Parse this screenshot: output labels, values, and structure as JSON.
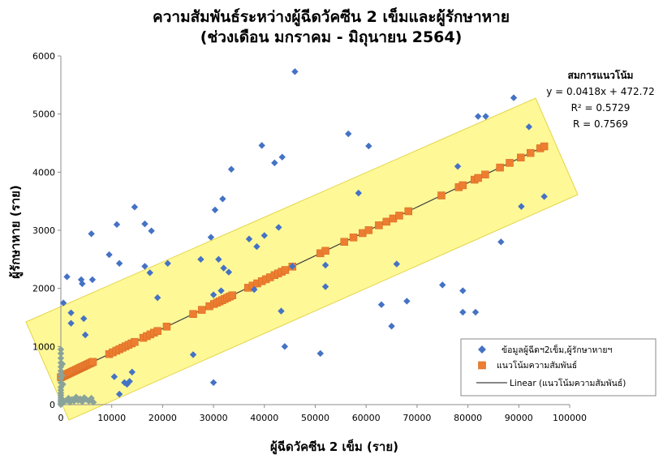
{
  "chart_data": {
    "type": "scatter",
    "title_line1": "ความสัมพันธ์ระหว่างผู้ฉีดวัคซีน 2 เข็มและผู้รักษาหาย",
    "title_line2": "(ช่วงเดือน มกราคม - มิถุนายน 2564)",
    "xlabel": "ผู้ฉีดวัคซีน 2 เข็ม (ราย)",
    "ylabel": "ผู้รักษาหาย (ราย)",
    "xlim": [
      0,
      100000
    ],
    "ylim": [
      0,
      6000
    ],
    "x_ticks": [
      0,
      10000,
      20000,
      30000,
      40000,
      50000,
      60000,
      70000,
      80000,
      90000,
      100000
    ],
    "y_ticks": [
      0,
      1000,
      2000,
      3000,
      4000,
      5000,
      6000
    ],
    "grid": false,
    "legend_position": "bottom-right",
    "highlight_band": true,
    "equation_box": {
      "heading": "สมการแนวโน้ม",
      "equation": "y = 0.0418x + 472.72",
      "r2": "R² = 0.5729",
      "r": "R = 0.7569"
    },
    "trendline": {
      "slope": 0.0418,
      "intercept": 472.72,
      "x_range": [
        0,
        95000
      ]
    },
    "series": [
      {
        "name": "ข้อมูลผู้ฉีดฯ2เข็ม,ผู้รักษาหายฯ",
        "marker": "diamond",
        "color": "#4472C4",
        "points": [
          [
            500,
            1750
          ],
          [
            1200,
            2200
          ],
          [
            2000,
            1400
          ],
          [
            2000,
            1580
          ],
          [
            4000,
            2150
          ],
          [
            4200,
            2080
          ],
          [
            4500,
            1480
          ],
          [
            4800,
            1200
          ],
          [
            6000,
            2940
          ],
          [
            6200,
            2150
          ],
          [
            9500,
            2580
          ],
          [
            10500,
            480
          ],
          [
            11000,
            3100
          ],
          [
            11500,
            2430
          ],
          [
            11500,
            180
          ],
          [
            12500,
            380
          ],
          [
            13000,
            350
          ],
          [
            13500,
            400
          ],
          [
            14000,
            560
          ],
          [
            14500,
            3400
          ],
          [
            16500,
            3110
          ],
          [
            16500,
            2380
          ],
          [
            17500,
            2270
          ],
          [
            17800,
            2990
          ],
          [
            19000,
            1840
          ],
          [
            21000,
            2430
          ],
          [
            26000,
            860
          ],
          [
            27500,
            2500
          ],
          [
            29500,
            2880
          ],
          [
            30000,
            1890
          ],
          [
            30000,
            380
          ],
          [
            30300,
            3350
          ],
          [
            31000,
            2500
          ],
          [
            31500,
            1960
          ],
          [
            31800,
            3540
          ],
          [
            32000,
            2350
          ],
          [
            33000,
            2280
          ],
          [
            33500,
            4050
          ],
          [
            37000,
            2850
          ],
          [
            38000,
            1980
          ],
          [
            38500,
            2720
          ],
          [
            39500,
            4460
          ],
          [
            40000,
            2910
          ],
          [
            42000,
            4160
          ],
          [
            42800,
            3050
          ],
          [
            43300,
            1610
          ],
          [
            43500,
            4260
          ],
          [
            44000,
            1000
          ],
          [
            45500,
            2380
          ],
          [
            46000,
            5730
          ],
          [
            51000,
            880
          ],
          [
            52000,
            2030
          ],
          [
            52000,
            2400
          ],
          [
            56500,
            4660
          ],
          [
            58500,
            3640
          ],
          [
            60500,
            4450
          ],
          [
            63000,
            1720
          ],
          [
            65000,
            1350
          ],
          [
            66000,
            2420
          ],
          [
            68000,
            1780
          ],
          [
            75000,
            2060
          ],
          [
            78000,
            4100
          ],
          [
            79000,
            1590
          ],
          [
            79000,
            1960
          ],
          [
            81500,
            1590
          ],
          [
            82000,
            4960
          ],
          [
            83500,
            4960
          ],
          [
            86500,
            2800
          ],
          [
            89000,
            5280
          ],
          [
            90500,
            3410
          ],
          [
            92000,
            4780
          ],
          [
            95000,
            3580
          ],
          [
            0,
            0
          ],
          [
            0,
            20
          ],
          [
            0,
            50
          ],
          [
            0,
            80
          ],
          [
            0,
            120
          ],
          [
            0,
            160
          ],
          [
            0,
            200
          ],
          [
            0,
            250
          ],
          [
            0,
            300
          ],
          [
            0,
            380
          ],
          [
            0,
            450
          ],
          [
            0,
            520
          ],
          [
            0,
            580
          ],
          [
            0,
            650
          ],
          [
            0,
            720
          ],
          [
            0,
            800
          ],
          [
            0,
            880
          ],
          [
            0,
            950
          ],
          [
            100,
            100
          ],
          [
            200,
            500
          ],
          [
            300,
            700
          ],
          [
            400,
            350
          ],
          [
            500,
            40
          ],
          [
            800,
            60
          ],
          [
            1200,
            80
          ],
          [
            1500,
            110
          ],
          [
            1800,
            40
          ],
          [
            2200,
            90
          ],
          [
            2600,
            60
          ],
          [
            3000,
            130
          ],
          [
            3400,
            70
          ],
          [
            3800,
            100
          ],
          [
            4200,
            50
          ],
          [
            4600,
            120
          ],
          [
            5000,
            90
          ],
          [
            5500,
            60
          ],
          [
            6000,
            110
          ],
          [
            6400,
            40
          ]
        ]
      },
      {
        "name": "แนวโน้มความสัมพันธ์",
        "marker": "square",
        "color": "#ED7D31",
        "x": [
          0,
          300,
          600,
          900,
          1200,
          1500,
          1800,
          2100,
          2400,
          2700,
          3000,
          3300,
          3600,
          3900,
          4200,
          4500,
          4800,
          5100,
          5400,
          5700,
          6000,
          6300,
          9500,
          10200,
          10900,
          11500,
          12100,
          12700,
          13300,
          13900,
          14500,
          16200,
          16900,
          17600,
          18300,
          19000,
          20800,
          26000,
          27700,
          29200,
          30100,
          30700,
          31200,
          31700,
          32200,
          32700,
          33200,
          33700,
          36800,
          37700,
          38600,
          39500,
          40300,
          41100,
          42000,
          42700,
          43400,
          44100,
          45500,
          51000,
          52000,
          55700,
          57500,
          59300,
          60500,
          62500,
          64000,
          65300,
          66500,
          68300,
          74800,
          78200,
          79000,
          81300,
          82000,
          83400,
          86300,
          88200,
          90400,
          92300,
          94200,
          95000
        ]
      },
      {
        "name": "Linear (แนวโน้มความสัมพันธ์)",
        "marker": "line",
        "color": "#404040"
      }
    ]
  }
}
